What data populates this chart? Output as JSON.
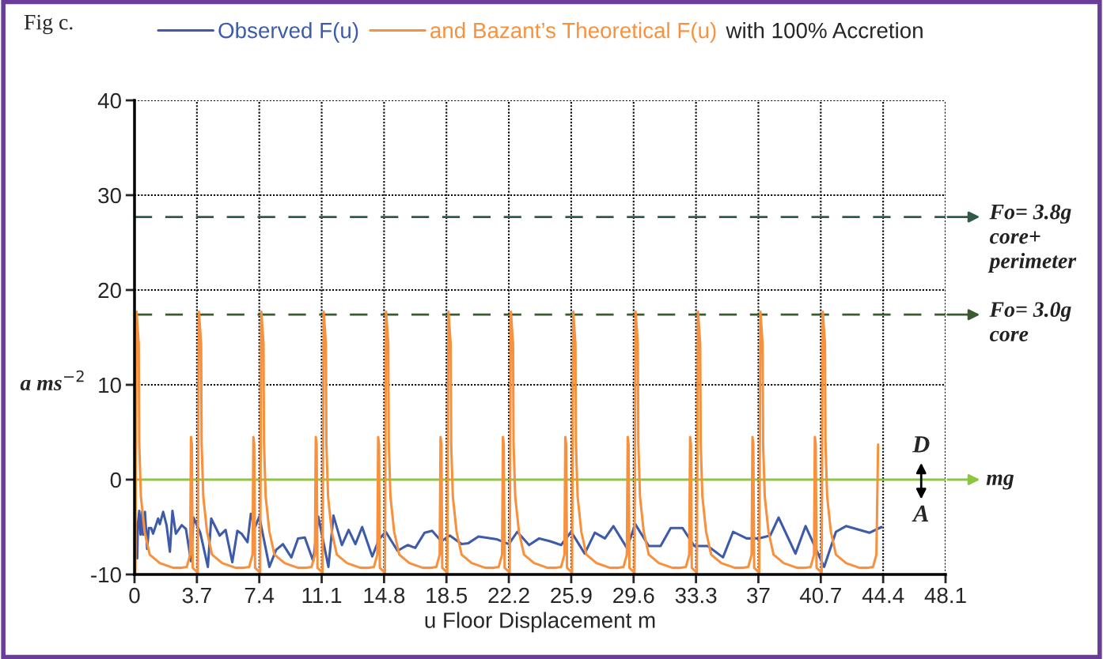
{
  "chart_data": {
    "type": "line",
    "xlabel": "u Floor Displacement m",
    "ylabel": "a ms$^{−2}$",
    "xlim": [
      0,
      48.1
    ],
    "xticks": [
      0,
      3.7,
      7.4,
      11.1,
      14.8,
      18.5,
      22.2,
      25.9,
      29.6,
      33.3,
      37,
      40.7,
      44.4,
      48.1
    ],
    "ylim": [
      -10,
      40
    ],
    "yticks": [
      -10,
      0,
      10,
      20,
      30,
      40
    ],
    "grid": true,
    "legend": "top",
    "series": [
      {
        "name": "Observed F(u)",
        "color": "#3e5ba9",
        "x": [
          0.0,
          0.05,
          0.11,
          0.16,
          0.2,
          0.28,
          0.36,
          0.45,
          0.51,
          0.62,
          0.75,
          0.85,
          0.99,
          1.1,
          1.4,
          1.5,
          1.7,
          1.9,
          2.1,
          2.25,
          2.45,
          2.8,
          3.05,
          3.35,
          3.5,
          3.9,
          4.35,
          4.55,
          5.05,
          5.4,
          5.8,
          6.1,
          6.35,
          6.7,
          6.9,
          7.15,
          7.4,
          8.0,
          8.4,
          8.8,
          9.3,
          9.7,
          10.1,
          10.6,
          10.9,
          11.5,
          11.8,
          12.3,
          12.7,
          13.1,
          13.5,
          14.1,
          14.5,
          14.9,
          15.6,
          16.2,
          16.65,
          17.2,
          17.65,
          18.2,
          18.7,
          19.4,
          19.8,
          20.4,
          21.5,
          22.2,
          22.7,
          23.4,
          24.0,
          24.65,
          25.3,
          25.9,
          26.7,
          27.3,
          27.9,
          28.4,
          29.2,
          29.7,
          30.5,
          31.2,
          31.8,
          32.5,
          33.2,
          34.0,
          34.9,
          35.5,
          36.3,
          37.0,
          37.7,
          38.2,
          39.2,
          39.8,
          40.9,
          41.6,
          42.2,
          43.6,
          44.3
        ],
        "values": [
          -3.3,
          -8.3,
          -4.6,
          -8.3,
          -4.7,
          -3.3,
          -5.8,
          -3.4,
          -5.8,
          -3.4,
          -7.3,
          -5.1,
          -5.1,
          -5.7,
          -4.1,
          -4.7,
          -3.4,
          -4.8,
          -7.6,
          -3.3,
          -5.7,
          -4.8,
          -5.2,
          -8.6,
          -4.0,
          -5.6,
          -9.2,
          -4.1,
          -5.9,
          -5.3,
          -8.7,
          -5.4,
          -5.7,
          -6.6,
          -3.6,
          -5.0,
          -3.9,
          -9.2,
          -7.4,
          -6.8,
          -8.2,
          -6.2,
          -6.1,
          -8.6,
          -3.9,
          -9.2,
          -3.8,
          -6.9,
          -5.3,
          -6.8,
          -5.0,
          -8.1,
          -6.3,
          -5.5,
          -7.5,
          -6.9,
          -7.2,
          -5.6,
          -5.4,
          -6.5,
          -5.9,
          -6.8,
          -6.7,
          -6.0,
          -6.3,
          -6.8,
          -5.5,
          -6.9,
          -6.2,
          -6.5,
          -6.9,
          -5.5,
          -7.8,
          -5.6,
          -6.2,
          -4.9,
          -7.2,
          -4.7,
          -7.0,
          -7.0,
          -5.1,
          -5.1,
          -7.0,
          -7.0,
          -8.2,
          -5.5,
          -6.2,
          -6.2,
          -5.9,
          -4.0,
          -7.8,
          -4.9,
          -9.2,
          -5.5,
          -4.9,
          -5.6,
          -5.0
        ]
      },
      {
        "name": "and Bazant’s Theoretical F(u)",
        "color": "#f7913d",
        "x": [
          0.05,
          0.12,
          0.25,
          0.28,
          0.38,
          0.6,
          0.9,
          1.5,
          2.3,
          2.8,
          3.1,
          3.3,
          3.35,
          3.4,
          3.45,
          3.75,
          3.82,
          3.95,
          3.98,
          4.08,
          4.3,
          4.6,
          5.2,
          6.0,
          6.5,
          6.8,
          7.0,
          7.05,
          7.1,
          7.15,
          7.45,
          7.52,
          7.65,
          7.68,
          7.78,
          8.0,
          8.3,
          8.9,
          9.7,
          10.2,
          10.5,
          10.7,
          10.75,
          10.8,
          10.85,
          11.15,
          11.22,
          11.35,
          11.38,
          11.48,
          11.7,
          12.0,
          12.6,
          13.4,
          13.9,
          14.2,
          14.4,
          14.45,
          14.5,
          14.55,
          14.85,
          14.92,
          15.05,
          15.08,
          15.18,
          15.4,
          15.7,
          16.3,
          17.1,
          17.6,
          17.9,
          18.1,
          18.15,
          18.2,
          18.25,
          18.55,
          18.62,
          18.75,
          18.78,
          18.88,
          19.1,
          19.4,
          20.0,
          20.8,
          21.3,
          21.6,
          21.8,
          21.85,
          21.9,
          21.95,
          22.25,
          22.32,
          22.45,
          22.48,
          22.58,
          22.8,
          23.1,
          23.7,
          24.5,
          25.0,
          25.3,
          25.5,
          25.55,
          25.6,
          25.65,
          25.95,
          26.02,
          26.15,
          26.18,
          26.28,
          26.5,
          26.8,
          27.4,
          28.2,
          28.7,
          29.0,
          29.2,
          29.25,
          29.3,
          29.35,
          29.65,
          29.72,
          29.85,
          29.88,
          29.98,
          30.2,
          30.5,
          31.1,
          31.9,
          32.4,
          32.7,
          32.9,
          32.95,
          33.0,
          33.05,
          33.35,
          33.42,
          33.55,
          33.58,
          33.68,
          33.9,
          34.2,
          34.8,
          35.6,
          36.1,
          36.4,
          36.6,
          36.65,
          36.7,
          36.75,
          37.05,
          37.12,
          37.25,
          37.28,
          37.38,
          37.6,
          37.9,
          38.5,
          39.3,
          39.8,
          40.1,
          40.3,
          40.35,
          40.4,
          40.45,
          40.75,
          40.82,
          40.95,
          40.98,
          41.08,
          41.3,
          41.6,
          42.2,
          43.0,
          43.5,
          43.8,
          44.0,
          44.1
        ],
        "values": [
          -9.8,
          17.7,
          14.3,
          3.8,
          -1.8,
          -5.5,
          -7.9,
          -8.8,
          -9.3,
          -9.3,
          -9.2,
          -7.9,
          4.5,
          3.7,
          -9.3,
          -9.8,
          17.7,
          14.3,
          3.8,
          -1.8,
          -5.5,
          -7.9,
          -8.8,
          -9.3,
          -9.3,
          -9.2,
          -7.9,
          4.5,
          3.7,
          -9.3,
          -9.8,
          17.7,
          14.3,
          3.8,
          -1.8,
          -5.5,
          -7.9,
          -8.8,
          -9.3,
          -9.3,
          -9.2,
          -7.9,
          4.5,
          3.7,
          -9.3,
          -9.8,
          17.7,
          14.3,
          3.8,
          -1.8,
          -5.5,
          -7.9,
          -8.8,
          -9.3,
          -9.3,
          -9.2,
          -7.9,
          4.5,
          3.7,
          -9.3,
          -9.8,
          17.7,
          14.3,
          3.8,
          -1.8,
          -5.5,
          -7.9,
          -8.8,
          -9.3,
          -9.3,
          -9.2,
          -7.9,
          4.5,
          3.7,
          -9.3,
          -9.8,
          17.7,
          14.3,
          3.8,
          -1.8,
          -5.5,
          -7.9,
          -8.8,
          -9.3,
          -9.3,
          -9.2,
          -7.9,
          4.5,
          3.7,
          -9.3,
          -9.8,
          17.7,
          14.3,
          3.8,
          -1.8,
          -5.5,
          -7.9,
          -8.8,
          -9.3,
          -9.3,
          -9.2,
          -7.9,
          4.5,
          3.7,
          -9.3,
          -9.8,
          17.7,
          14.3,
          3.8,
          -1.8,
          -5.5,
          -7.9,
          -8.8,
          -9.3,
          -9.3,
          -9.2,
          -7.9,
          4.5,
          3.7,
          -9.3,
          -9.8,
          17.7,
          14.3,
          3.8,
          -1.8,
          -5.5,
          -7.9,
          -8.8,
          -9.3,
          -9.3,
          -9.2,
          -7.9,
          4.5,
          3.7,
          -9.3,
          -9.8,
          17.7,
          14.3,
          3.8,
          -1.8,
          -5.5,
          -7.9,
          -8.8,
          -9.3,
          -9.3,
          -9.2,
          -7.9,
          4.5,
          3.7,
          -9.3,
          -9.8,
          17.7,
          14.3,
          3.8,
          -1.8,
          -5.5,
          -7.9,
          -8.8,
          -9.3,
          -9.3,
          -9.2,
          -7.9,
          4.5,
          3.7,
          -9.3,
          -9.8,
          17.7,
          14.3,
          3.8,
          -1.8,
          -5.5,
          -7.9,
          -8.8,
          -9.3,
          -9.3,
          -9.2,
          -7.9,
          3.7
        ]
      }
    ],
    "ref_lines": [
      {
        "axis": "y",
        "value": 27.7,
        "color": "#2f5a48",
        "line_style": "dashed"
      },
      {
        "axis": "y",
        "value": 17.4,
        "color": "#3a5a30",
        "line_style": "dashed"
      },
      {
        "axis": "y",
        "value": 0,
        "label": "mg",
        "color": "#8cc63f",
        "line_style": "solid"
      }
    ],
    "annotations": [
      "Fig c.",
      "with 100% Accretion",
      "D",
      "A",
      {
        "text": "Fo= 3.8g\ncore+\nperimeter",
        "x": 48.1,
        "y": 27.7
      },
      {
        "text": "Fo= 3.0g\ncore",
        "x": 48.1,
        "y": 17.4
      }
    ]
  }
}
